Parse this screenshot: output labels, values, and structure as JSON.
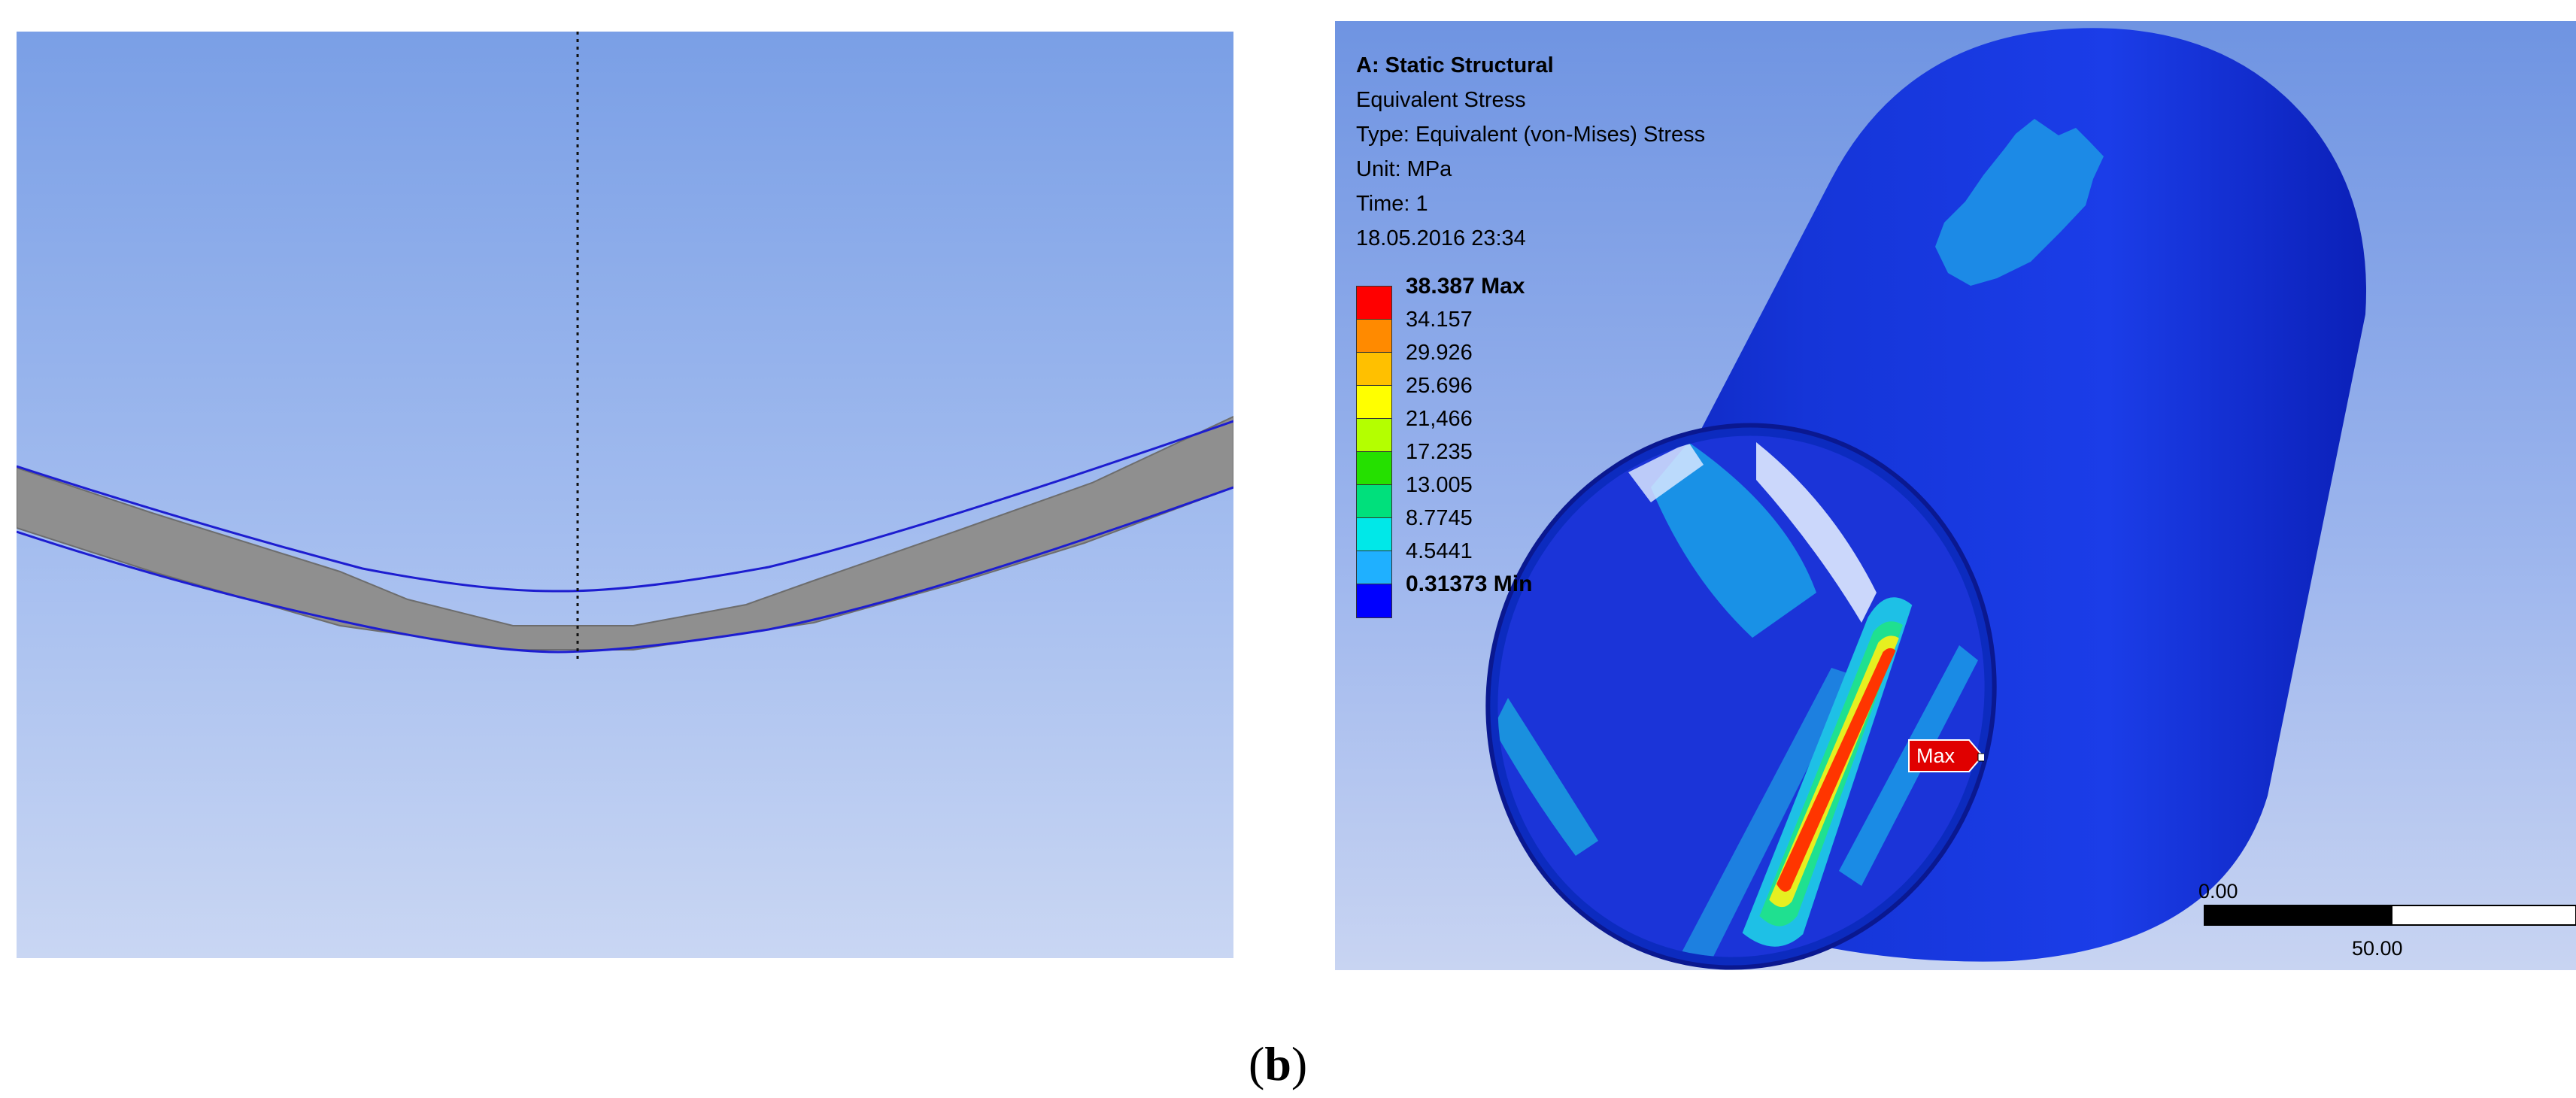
{
  "result": {
    "title": "A: Static Structural",
    "quantity": "Equivalent Stress",
    "type": "Type: Equivalent (von-Mises) Stress",
    "unit": "Unit: MPa",
    "time": "Time: 1",
    "timestamp": "18.05.2016 23:34"
  },
  "legend": {
    "levels": [
      {
        "value": "38.387 Max",
        "color": "#ff0000"
      },
      {
        "value": "34.157",
        "color": "#ff8a00"
      },
      {
        "value": "29.926",
        "color": "#ffc000"
      },
      {
        "value": "25.696",
        "color": "#ffff00"
      },
      {
        "value": "21,466",
        "color": "#b4ff00"
      },
      {
        "value": "17.235",
        "color": "#25e000"
      },
      {
        "value": "13.005",
        "color": "#00e07c"
      },
      {
        "value": "8.7745",
        "color": "#00e8e8"
      },
      {
        "value": "4.5441",
        "color": "#1fb0ff"
      },
      {
        "value": "0.31373 Min",
        "color": "#0000ff"
      }
    ]
  },
  "probe": {
    "label": "Max"
  },
  "scale_bar": {
    "start": "0.00",
    "end": "50.00"
  },
  "caption": {
    "open": "(",
    "letter": "b",
    "close": ")"
  }
}
